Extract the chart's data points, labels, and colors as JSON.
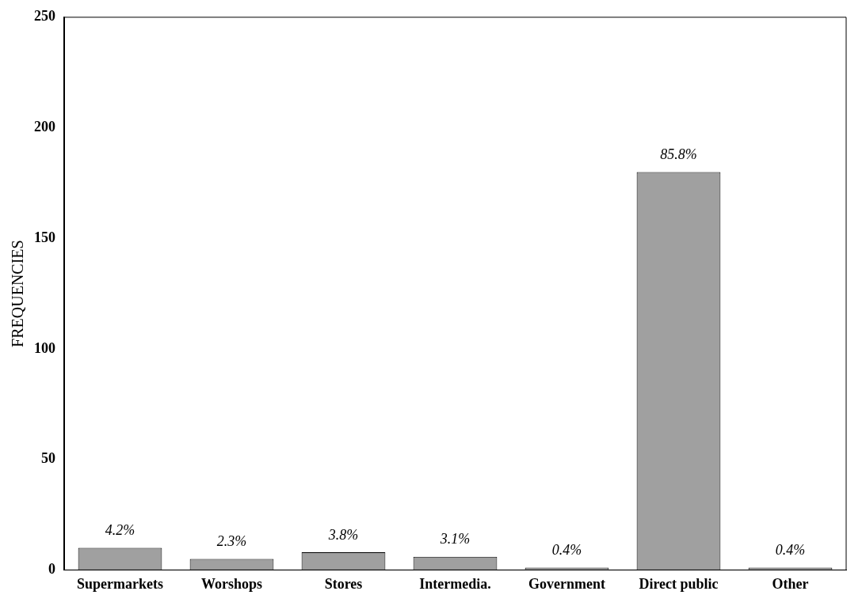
{
  "chart_data": {
    "type": "bar",
    "ylabel": "FREQUENCIES",
    "categories": [
      "Supermarkets",
      "Worshops",
      "Stores",
      "Intermedia.",
      "Government",
      "Direct public",
      "Other"
    ],
    "values": [
      10,
      5,
      8,
      6,
      1,
      180,
      1
    ],
    "annotations": [
      {
        "text": "4.2%",
        "x": "Supermarkets",
        "y": 10
      },
      {
        "text": "2.3%",
        "x": "Worshops",
        "y": 5
      },
      {
        "text": "3.8%",
        "x": "Stores",
        "y": 8
      },
      {
        "text": "3.1%",
        "x": "Intermedia.",
        "y": 6
      },
      {
        "text": "0.4%",
        "x": "Government",
        "y": 1
      },
      {
        "text": "85.8%",
        "x": "Direct public",
        "y": 180
      },
      {
        "text": "0.4%",
        "x": "Other",
        "y": 1
      }
    ],
    "color": "#a0a0a0",
    "ylim": [
      0,
      250
    ],
    "yticks": [
      0,
      50,
      100,
      150,
      200,
      250
    ],
    "grid": false,
    "legend": false
  }
}
